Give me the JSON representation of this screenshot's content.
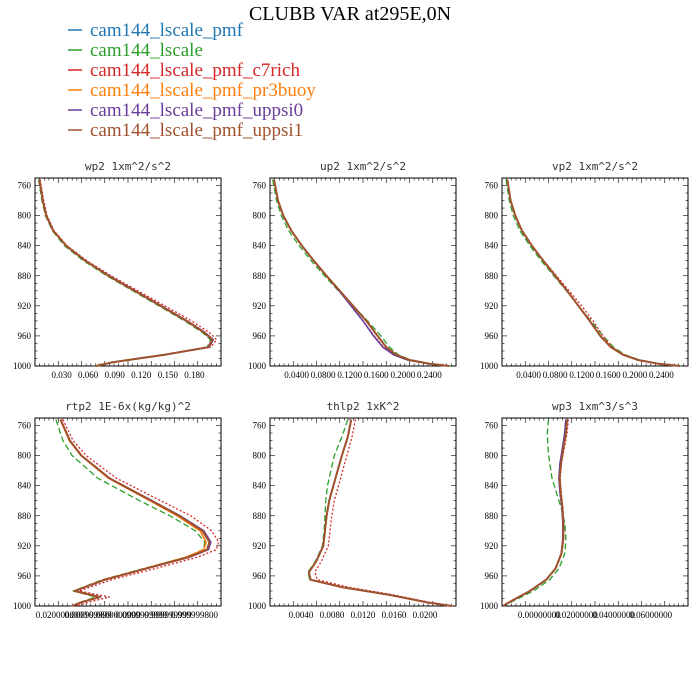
{
  "figure": {
    "title": "CLUBB VAR at295E,0N"
  },
  "legend": [
    {
      "label": "cam144_lscale_pmf",
      "color": "#1f77b4"
    },
    {
      "label": "cam144_lscale",
      "color": "#2ca02c"
    },
    {
      "label": "cam144_lscale_pmf_c7rich",
      "color": "#d62728"
    },
    {
      "label": "cam144_lscale_pmf_pr3buoy",
      "color": "#ff7f0e"
    },
    {
      "label": "cam144_lscale_pmf_uppsi0",
      "color": "#6a3d9a"
    },
    {
      "label": "cam144_lscale_pmf_uppsi1",
      "color": "#a0522d"
    }
  ],
  "chart_data": [
    {
      "type": "line",
      "title": "wp2  1xm^2/s^2",
      "ylim": [
        1000,
        750
      ],
      "yticks": [
        "760",
        "800",
        "840",
        "880",
        "920",
        "960",
        "1000"
      ],
      "xlim": [
        0,
        0.215
      ],
      "xticks": [
        "0.030",
        "0.060",
        "0.090",
        "0.120",
        "0.150",
        "0.180"
      ],
      "y": [
        752,
        780,
        800,
        820,
        840,
        860,
        880,
        900,
        920,
        940,
        955,
        965,
        975,
        985,
        995,
        1000
      ],
      "series": [
        {
          "name": "cam144_lscale_pmf",
          "values": [
            0.005,
            0.009,
            0.013,
            0.021,
            0.036,
            0.058,
            0.085,
            0.115,
            0.145,
            0.175,
            0.195,
            0.205,
            0.2,
            0.15,
            0.09,
            0.07
          ]
        },
        {
          "name": "cam144_lscale",
          "values": [
            0.004,
            0.008,
            0.012,
            0.02,
            0.034,
            0.056,
            0.083,
            0.113,
            0.143,
            0.173,
            0.193,
            0.203,
            0.199,
            0.148,
            0.088,
            0.068
          ]
        },
        {
          "name": "cam144_lscale_pmf_c7rich",
          "values": [
            0.006,
            0.01,
            0.014,
            0.022,
            0.037,
            0.06,
            0.088,
            0.119,
            0.15,
            0.181,
            0.201,
            0.21,
            0.203,
            0.15,
            0.09,
            0.07
          ]
        },
        {
          "name": "cam144_lscale_pmf_pr3buoy",
          "values": [
            0.005,
            0.009,
            0.013,
            0.021,
            0.036,
            0.058,
            0.085,
            0.116,
            0.146,
            0.176,
            0.196,
            0.206,
            0.201,
            0.151,
            0.091,
            0.071
          ]
        },
        {
          "name": "cam144_lscale_pmf_uppsi0",
          "values": [
            0.005,
            0.009,
            0.013,
            0.021,
            0.036,
            0.058,
            0.086,
            0.116,
            0.146,
            0.176,
            0.196,
            0.206,
            0.201,
            0.15,
            0.09,
            0.07
          ]
        },
        {
          "name": "cam144_lscale_pmf_uppsi1",
          "values": [
            0.005,
            0.009,
            0.013,
            0.021,
            0.036,
            0.058,
            0.085,
            0.115,
            0.145,
            0.175,
            0.195,
            0.205,
            0.2,
            0.15,
            0.09,
            0.07
          ]
        }
      ]
    },
    {
      "type": "line",
      "title": "up2  1xm^2/s^2",
      "ylim": [
        1000,
        750
      ],
      "yticks": [
        "760",
        "800",
        "840",
        "880",
        "920",
        "960",
        "1000"
      ],
      "xlim": [
        0,
        0.28
      ],
      "xticks": [
        "0.0400",
        "0.0800",
        "0.1200",
        "0.1600",
        "0.2000",
        "0.2400"
      ],
      "y": [
        752,
        780,
        800,
        820,
        840,
        860,
        880,
        900,
        920,
        940,
        960,
        975,
        985,
        992,
        997,
        1000
      ],
      "series": [
        {
          "name": "cam144_lscale_pmf",
          "values": [
            0.006,
            0.012,
            0.02,
            0.032,
            0.048,
            0.066,
            0.085,
            0.105,
            0.125,
            0.145,
            0.162,
            0.175,
            0.19,
            0.21,
            0.24,
            0.27
          ]
        },
        {
          "name": "cam144_lscale",
          "values": [
            0.004,
            0.01,
            0.017,
            0.028,
            0.044,
            0.062,
            0.082,
            0.103,
            0.125,
            0.147,
            0.167,
            0.18,
            0.193,
            0.212,
            0.242,
            0.272
          ]
        },
        {
          "name": "cam144_lscale_pmf_c7rich",
          "values": [
            0.006,
            0.012,
            0.02,
            0.032,
            0.048,
            0.066,
            0.085,
            0.104,
            0.122,
            0.14,
            0.157,
            0.171,
            0.187,
            0.208,
            0.239,
            0.269
          ]
        },
        {
          "name": "cam144_lscale_pmf_pr3buoy",
          "values": [
            0.006,
            0.012,
            0.02,
            0.032,
            0.048,
            0.066,
            0.085,
            0.105,
            0.125,
            0.145,
            0.162,
            0.175,
            0.19,
            0.21,
            0.24,
            0.27
          ]
        },
        {
          "name": "cam144_lscale_pmf_uppsi0",
          "values": [
            0.006,
            0.012,
            0.02,
            0.032,
            0.048,
            0.066,
            0.085,
            0.104,
            0.122,
            0.14,
            0.156,
            0.17,
            0.186,
            0.207,
            0.238,
            0.268
          ]
        },
        {
          "name": "cam144_lscale_pmf_uppsi1",
          "values": [
            0.006,
            0.012,
            0.02,
            0.032,
            0.048,
            0.066,
            0.085,
            0.105,
            0.125,
            0.145,
            0.162,
            0.175,
            0.19,
            0.21,
            0.24,
            0.27
          ]
        }
      ]
    },
    {
      "type": "line",
      "title": "vp2  1xm^2/s^2",
      "ylim": [
        1000,
        750
      ],
      "yticks": [
        "760",
        "800",
        "840",
        "880",
        "920",
        "960",
        "1000"
      ],
      "xlim": [
        0,
        0.28
      ],
      "xticks": [
        "0.0400",
        "0.0800",
        "0.1200",
        "0.1600",
        "0.2000",
        "0.2400"
      ],
      "y": [
        752,
        780,
        800,
        820,
        840,
        860,
        880,
        900,
        920,
        940,
        960,
        975,
        985,
        992,
        997,
        1000
      ],
      "series": [
        {
          "name": "cam144_lscale_pmf",
          "values": [
            0.008,
            0.013,
            0.02,
            0.03,
            0.045,
            0.062,
            0.08,
            0.098,
            0.115,
            0.132,
            0.148,
            0.164,
            0.182,
            0.205,
            0.235,
            0.268
          ]
        },
        {
          "name": "cam144_lscale",
          "values": [
            0.006,
            0.011,
            0.017,
            0.027,
            0.042,
            0.059,
            0.078,
            0.097,
            0.115,
            0.134,
            0.152,
            0.168,
            0.185,
            0.207,
            0.237,
            0.27
          ]
        },
        {
          "name": "cam144_lscale_pmf_c7rich",
          "values": [
            0.008,
            0.013,
            0.02,
            0.03,
            0.045,
            0.063,
            0.082,
            0.101,
            0.12,
            0.137,
            0.152,
            0.166,
            0.183,
            0.205,
            0.235,
            0.268
          ]
        },
        {
          "name": "cam144_lscale_pmf_pr3buoy",
          "values": [
            0.008,
            0.013,
            0.02,
            0.03,
            0.045,
            0.062,
            0.08,
            0.098,
            0.115,
            0.132,
            0.148,
            0.164,
            0.182,
            0.205,
            0.235,
            0.268
          ]
        },
        {
          "name": "cam144_lscale_pmf_uppsi0",
          "values": [
            0.008,
            0.013,
            0.02,
            0.03,
            0.045,
            0.062,
            0.08,
            0.098,
            0.115,
            0.132,
            0.148,
            0.164,
            0.182,
            0.205,
            0.235,
            0.268
          ]
        },
        {
          "name": "cam144_lscale_pmf_uppsi1",
          "values": [
            0.008,
            0.013,
            0.02,
            0.03,
            0.045,
            0.062,
            0.08,
            0.098,
            0.115,
            0.132,
            0.148,
            0.164,
            0.182,
            0.205,
            0.235,
            0.268
          ]
        }
      ]
    },
    {
      "type": "line",
      "title": "rtp2  1E-6x(kg/kg)^2",
      "ylim": [
        1000,
        750
      ],
      "yticks": [
        "760",
        "800",
        "840",
        "880",
        "920",
        "960",
        "1000"
      ],
      "xlim": [
        0,
        4e-06
      ],
      "xticks": [
        "0.0200000000",
        "0.000999999",
        "0.0600000000",
        "0.0999999999",
        "0.999999999",
        "0.999999800"
      ],
      "y": [
        752,
        780,
        800,
        830,
        860,
        880,
        900,
        915,
        925,
        935,
        950,
        965,
        980,
        988,
        995,
        1000
      ],
      "series": [
        {
          "name": "cam144_lscale_pmf",
          "values": [
            5.5e-07,
            7.5e-07,
            1e-06,
            1.6e-06,
            2.5e-06,
            3.1e-06,
            3.6e-06,
            3.75e-06,
            3.7e-06,
            3.3e-06,
            2.4e-06,
            1.5e-06,
            8.5e-07,
            1.4e-06,
            1e-06,
            8e-07
          ]
        },
        {
          "name": "cam144_lscale",
          "values": [
            4.5e-07,
            6e-07,
            8e-07,
            1.35e-06,
            2.25e-06,
            2.9e-06,
            3.45e-06,
            3.65e-06,
            3.62e-06,
            3.25e-06,
            2.35e-06,
            1.45e-06,
            8.2e-07,
            1.3e-06,
            9.8e-07,
            7.8e-07
          ]
        },
        {
          "name": "cam144_lscale_pmf_c7rich",
          "values": [
            6e-07,
            8.2e-07,
            1.1e-06,
            1.75e-06,
            2.7e-06,
            3.35e-06,
            3.8e-06,
            3.95e-06,
            3.9e-06,
            3.5e-06,
            2.6e-06,
            1.65e-06,
            9.5e-07,
            1.6e-06,
            1.15e-06,
            9e-07
          ]
        },
        {
          "name": "cam144_lscale_pmf_pr3buoy",
          "values": [
            5.4e-07,
            7.4e-07,
            9.9e-07,
            1.58e-06,
            2.47e-06,
            3.06e-06,
            3.55e-06,
            3.68e-06,
            3.63e-06,
            3.25e-06,
            2.38e-06,
            1.48e-06,
            8.4e-07,
            1.38e-06,
            9.9e-07,
            7.9e-07
          ]
        },
        {
          "name": "cam144_lscale_pmf_uppsi0",
          "values": [
            5.5e-07,
            7.5e-07,
            1e-06,
            1.6e-06,
            2.52e-06,
            3.12e-06,
            3.63e-06,
            3.78e-06,
            3.73e-06,
            3.33e-06,
            2.42e-06,
            1.51e-06,
            8.6e-07,
            1.41e-06,
            1.01e-06,
            8e-07
          ]
        },
        {
          "name": "cam144_lscale_pmf_uppsi1",
          "values": [
            5.5e-07,
            7.5e-07,
            1e-06,
            1.6e-06,
            2.5e-06,
            3.1e-06,
            3.6e-06,
            3.75e-06,
            3.7e-06,
            3.3e-06,
            2.4e-06,
            1.5e-06,
            8.5e-07,
            1.4e-06,
            1e-06,
            8e-07
          ]
        }
      ]
    },
    {
      "type": "line",
      "title": "thlp2  1xK^2",
      "ylim": [
        1000,
        750
      ],
      "yticks": [
        "760",
        "800",
        "840",
        "880",
        "920",
        "960",
        "1000"
      ],
      "xlim": [
        0,
        0.022
      ],
      "xticks": [
        "0.0040",
        "0.0080",
        "0.0120",
        "0.0160",
        "0.0200"
      ],
      "y": [
        752,
        775,
        800,
        820,
        840,
        860,
        880,
        900,
        920,
        940,
        955,
        965,
        975,
        985,
        995,
        1000
      ],
      "series": [
        {
          "name": "cam144_lscale_pmf",
          "values": [
            0.0096,
            0.0092,
            0.0085,
            0.008,
            0.0075,
            0.007,
            0.0067,
            0.0065,
            0.0063,
            0.0055,
            0.0046,
            0.0048,
            0.0085,
            0.014,
            0.0185,
            0.0215
          ]
        },
        {
          "name": "cam144_lscale",
          "values": [
            0.0092,
            0.0085,
            0.0076,
            0.0072,
            0.0068,
            0.0066,
            0.0065,
            0.0064,
            0.0062,
            0.0054,
            0.0045,
            0.0047,
            0.0084,
            0.0139,
            0.0184,
            0.0214
          ]
        },
        {
          "name": "cam144_lscale_pmf_c7rich",
          "values": [
            0.0101,
            0.0097,
            0.0091,
            0.0086,
            0.0081,
            0.0076,
            0.0073,
            0.0071,
            0.0069,
            0.0061,
            0.0053,
            0.0056,
            0.0093,
            0.0145,
            0.0188,
            0.0216
          ]
        },
        {
          "name": "cam144_lscale_pmf_pr3buoy",
          "values": [
            0.0096,
            0.0092,
            0.0085,
            0.008,
            0.0075,
            0.007,
            0.0067,
            0.0065,
            0.0063,
            0.0055,
            0.0046,
            0.0048,
            0.0085,
            0.014,
            0.0185,
            0.0215
          ]
        },
        {
          "name": "cam144_lscale_pmf_uppsi0",
          "values": [
            0.0096,
            0.0092,
            0.0085,
            0.008,
            0.0075,
            0.007,
            0.0067,
            0.0065,
            0.0063,
            0.0055,
            0.0046,
            0.0048,
            0.0085,
            0.014,
            0.0185,
            0.0215
          ]
        },
        {
          "name": "cam144_lscale_pmf_uppsi1",
          "values": [
            0.0096,
            0.0092,
            0.0085,
            0.008,
            0.0075,
            0.007,
            0.0067,
            0.0065,
            0.0063,
            0.0055,
            0.0046,
            0.0048,
            0.0085,
            0.014,
            0.0185,
            0.0215
          ]
        }
      ]
    },
    {
      "type": "line",
      "title": "wp3  1xm^3/s^3",
      "ylim": [
        1000,
        750
      ],
      "yticks": [
        "760",
        "800",
        "840",
        "880",
        "920",
        "960",
        "1000"
      ],
      "xlim": [
        0,
        0.08
      ],
      "xticks": [
        "0.00000000",
        "0.02000000",
        "0.04000000",
        "0.06000000"
      ],
      "y": [
        752,
        770,
        790,
        810,
        830,
        850,
        870,
        890,
        910,
        930,
        950,
        965,
        980,
        990,
        997,
        1000
      ],
      "series": [
        {
          "name": "cam144_lscale_pmf",
          "values": [
            0.0275,
            0.027,
            0.026,
            0.025,
            0.0245,
            0.025,
            0.0258,
            0.0262,
            0.0262,
            0.0255,
            0.023,
            0.019,
            0.012,
            0.006,
            0.002,
            0.0005
          ]
        },
        {
          "name": "cam144_lscale",
          "values": [
            0.02,
            0.0195,
            0.0198,
            0.0205,
            0.0215,
            0.0235,
            0.0255,
            0.027,
            0.0275,
            0.027,
            0.0245,
            0.0205,
            0.0135,
            0.007,
            0.0025,
            0.0005
          ]
        },
        {
          "name": "cam144_lscale_pmf_c7rich",
          "values": [
            0.0285,
            0.028,
            0.0268,
            0.0256,
            0.025,
            0.0255,
            0.0262,
            0.0266,
            0.0265,
            0.0257,
            0.0231,
            0.019,
            0.012,
            0.006,
            0.002,
            0.0005
          ]
        },
        {
          "name": "cam144_lscale_pmf_pr3buoy",
          "values": [
            0.0278,
            0.0272,
            0.0262,
            0.0252,
            0.0246,
            0.0251,
            0.0259,
            0.0263,
            0.0263,
            0.0256,
            0.023,
            0.019,
            0.012,
            0.006,
            0.002,
            0.0005
          ]
        },
        {
          "name": "cam144_lscale_pmf_uppsi0",
          "values": [
            0.0275,
            0.027,
            0.026,
            0.025,
            0.0245,
            0.025,
            0.0258,
            0.0262,
            0.0262,
            0.0255,
            0.023,
            0.019,
            0.012,
            0.006,
            0.002,
            0.0005
          ]
        },
        {
          "name": "cam144_lscale_pmf_uppsi1",
          "values": [
            0.028,
            0.0275,
            0.0264,
            0.0254,
            0.0248,
            0.0253,
            0.026,
            0.0264,
            0.0264,
            0.0256,
            0.0231,
            0.019,
            0.012,
            0.006,
            0.002,
            0.0005
          ]
        }
      ]
    }
  ]
}
